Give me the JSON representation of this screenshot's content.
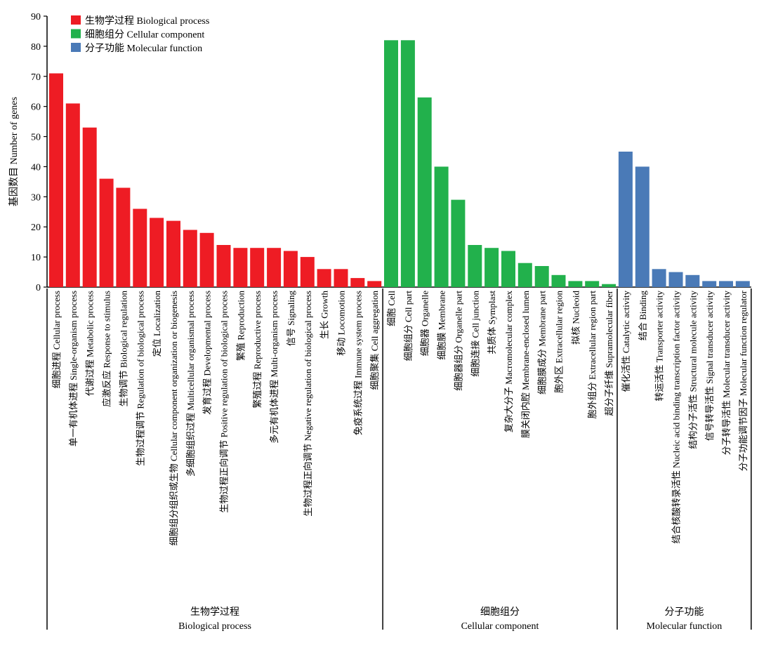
{
  "chart_data": {
    "type": "bar",
    "title": "",
    "xlabel": "",
    "ylabel": "基因数目 Number of genes",
    "ylim": [
      0,
      90
    ],
    "yticks": [
      0,
      10,
      20,
      30,
      40,
      50,
      60,
      70,
      80,
      90
    ],
    "grid": false,
    "legend_position": "top-left",
    "series": [
      {
        "name": "生物学过程 Biological process",
        "group_cn": "生物学过程",
        "group_en": "Biological process",
        "color": "#ee1c24",
        "categories": [
          "细胞进程 Cellular process",
          "单一有机体进程 Single-organism process",
          "代谢过程 Metabolic process",
          "应激反应 Response to stimulus",
          "生物调节 Biological regulation",
          "生物过程调节 Regulation of biological process",
          "定位 Localization",
          "细胞组分组织或生物 Cellular component organization or biogenesis",
          "多细胞组织过程 Multicellular organismal process",
          "发育过程 Developmental process",
          "生物过程正向调节 Positive regulation of biological process",
          "繁殖 Reproduction",
          "繁殖过程 Reproductive process",
          "多元有机体进程 Multi-organism process",
          "信号 Signaling",
          "生物过程正向调节 Negative regulation of biological process",
          "生长 Growth",
          "移动 Locomotion",
          "免疫系统过程 Immune system process",
          "细胞聚集 Cell aggregation"
        ],
        "values": [
          71,
          61,
          53,
          36,
          33,
          26,
          23,
          22,
          19,
          18,
          14,
          13,
          13,
          13,
          12,
          10,
          6,
          6,
          3,
          2
        ]
      },
      {
        "name": "细胞组分 Cellular component",
        "group_cn": "细胞组分",
        "group_en": "Cellular component",
        "color": "#22b14c",
        "categories": [
          "细胞 Cell",
          "细胞组分 Cell part",
          "细胞器 Organelle",
          "细胞膜 Membrane",
          "细胞器组分 Organelle part",
          "细胞连接 Cell junction",
          "共质体 Symplast",
          "复杂大分子 Macromolecular complex",
          "膜关闭内腔 Membrane-enclosed lumen",
          "细胞膜成分 Membrane part",
          "胞外区 Extracellular region",
          "拟核 Nucleoid",
          "胞外组分 Extracellular region part",
          "超分子纤维 Supramolecular fiber"
        ],
        "values": [
          82,
          82,
          63,
          40,
          29,
          14,
          13,
          12,
          8,
          7,
          4,
          2,
          2,
          1
        ]
      },
      {
        "name": "分子功能 Molecular function",
        "group_cn": "分子功能",
        "group_en": "Molecular function",
        "color": "#4a7ab7",
        "categories": [
          "催化活性 Catalytic activity",
          "结合 Binding",
          "转运活性 Transporter activity",
          "结合核酸转录活性 Nucleic acid binding transcription factor activity",
          "结构分子活性 Structural molecule activity",
          "信号转导活性 Signal transducer activity",
          "分子转导活性 Molecular transducer activity",
          "分子功能调节因子 Molecular function regulator"
        ],
        "values": [
          45,
          40,
          6,
          5,
          4,
          2,
          2,
          2
        ]
      }
    ]
  }
}
